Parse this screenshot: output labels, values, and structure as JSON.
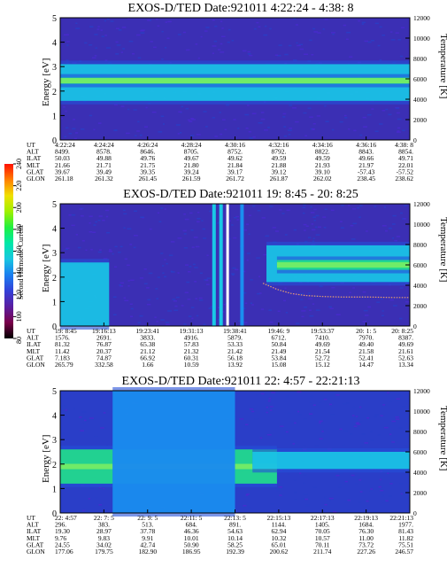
{
  "colorbar": {
    "label": "Second Harmonic Current",
    "ticks": [
      "80",
      "100",
      "120",
      "140",
      "160",
      "180",
      "200",
      "220",
      "240"
    ],
    "colors": [
      "#000000",
      "#7a004a",
      "#5a1ea0",
      "#3340d8",
      "#1a7ff0",
      "#18c6e0",
      "#00e8a8",
      "#20f040",
      "#a0f000",
      "#f0e000",
      "#ff8000",
      "#ff1000"
    ]
  },
  "panels": [
    {
      "title": "EXOS-D/TED   Date:921011  4:22:24 - 4:38: 8",
      "ylabel": "Energy [eV]",
      "y2label": "Temperature [K]",
      "yticks": [
        "5",
        "4",
        "3",
        "2",
        "1",
        "0"
      ],
      "y2ticks": [
        "12000",
        "10000",
        "8000",
        "6000",
        "4000",
        "2000",
        "0"
      ],
      "table": {
        "labels": [
          "UT",
          "ALT",
          "ILAT",
          "MLT",
          "GLAT",
          "GLON"
        ],
        "columns": [
          [
            "4:22:24",
            "8499.",
            "50.03",
            "21.66",
            "39.67",
            "261.18"
          ],
          [
            "4:24:24",
            "8578.",
            "49.88",
            "21.71",
            "39.49",
            "261.32"
          ],
          [
            "4:26:24",
            "8646.",
            "49.76",
            "21.75",
            "39.35",
            "261.45"
          ],
          [
            "4:28:24",
            "8705.",
            "49.67",
            "21.80",
            "39.24",
            "261.59"
          ],
          [
            "4:30:16",
            "8752.",
            "49.62",
            "21.84",
            "39.17",
            "261.72"
          ],
          [
            "4:32:16",
            "8792.",
            "49.59",
            "21.88",
            "39.12",
            "261.87"
          ],
          [
            "4:34:16",
            "8822.",
            "49.59",
            "21.93",
            "39.10",
            "262.02"
          ],
          [
            "4:36:16",
            "8843.",
            "49.66",
            "21.97",
            "-57.43",
            "238.45"
          ],
          [
            "4:38: 8",
            "8854.",
            "49.71",
            "22.01",
            "-57.52",
            "238.62"
          ]
        ]
      }
    },
    {
      "title": "EXOS-D/TED   Date:921011  19: 8:45 - 20: 8:25",
      "ylabel": "Energy [eV]",
      "y2label": "Temperature [K]",
      "yticks": [
        "5",
        "4",
        "3",
        "2",
        "1",
        "0"
      ],
      "y2ticks": [
        "12000",
        "10000",
        "8000",
        "6000",
        "4000",
        "2000",
        "0"
      ],
      "table": {
        "labels": [
          "UT",
          "ALT",
          "ILAT",
          "MLT",
          "GLAT",
          "GLON"
        ],
        "columns": [
          [
            "19: 8:45",
            "1576.",
            "81.32",
            "11.42",
            "7.183",
            "265.79"
          ],
          [
            "19:16:13",
            "2691.",
            "76.87",
            "20.37",
            "74.87",
            "332.58"
          ],
          [
            "19:23:41",
            "3833.",
            "65.38",
            "21.12",
            "66.92",
            "1.66"
          ],
          [
            "19:31:13",
            "4916.",
            "57.83",
            "21.32",
            "60.31",
            "10.59"
          ],
          [
            "19:38:41",
            "5879.",
            "53.33",
            "21.42",
            "56.18",
            "13.92"
          ],
          [
            "19:46: 9",
            "6712.",
            "50.84",
            "21.49",
            "53.84",
            "15.08"
          ],
          [
            "19:53:37",
            "7410.",
            "49.69",
            "21.54",
            "52.72",
            "15.12"
          ],
          [
            "20: 1: 5",
            "7970.",
            "49.40",
            "21.58",
            "52.41",
            "14.47"
          ],
          [
            "20: 8:25",
            "8387.",
            "49.69",
            "21.61",
            "52.63",
            "13.34"
          ]
        ]
      }
    },
    {
      "title": "EXOS-D/TED   Date:921011  22: 4:57 - 22:21:13",
      "ylabel": "Energy [eV]",
      "y2label": "Temperature [K]",
      "yticks": [
        "5",
        "4",
        "3",
        "2",
        "1",
        "0"
      ],
      "y2ticks": [
        "12000",
        "10000",
        "8000",
        "6000",
        "4000",
        "2000",
        "0"
      ],
      "table": {
        "labels": [
          "UT",
          "ALT",
          "ILAT",
          "MLT",
          "GLAT",
          "GLON"
        ],
        "columns": [
          [
            "22: 4:57",
            "296.",
            "19.30",
            "9.76",
            "24.55",
            "177.06"
          ],
          [
            "22: 7: 5",
            "383.",
            "28.97",
            "9.83",
            "34.02",
            "179.75"
          ],
          [
            "22: 9: 5",
            "513.",
            "37.78",
            "9.91",
            "42.74",
            "182.90"
          ],
          [
            "22:11: 5",
            "684.",
            "46.36",
            "10.01",
            "50.90",
            "186.95"
          ],
          [
            "22:13: 5",
            "891.",
            "54.63",
            "10.14",
            "58.25",
            "192.39"
          ],
          [
            "22:15:13",
            "1144.",
            "62.94",
            "10.32",
            "65.01",
            "200.62"
          ],
          [
            "22:17:13",
            "1405.",
            "70.05",
            "10.57",
            "70.11",
            "211.74"
          ],
          [
            "22:19:13",
            "1684.",
            "76.30",
            "11.00",
            "73.72",
            "227.26"
          ],
          [
            "22:21:13",
            "1977.",
            "81.43",
            "11.82",
            "75.51",
            "246.57"
          ]
        ]
      }
    }
  ],
  "chart_data": [
    {
      "type": "heatmap",
      "title": "EXOS-D/TED   Date:921011  4:22:24 - 4:38: 8",
      "xlabel": "UT",
      "ylabel": "Energy [eV]",
      "y2label": "Temperature [K]",
      "x": [
        "4:22:24",
        "4:24:24",
        "4:26:24",
        "4:28:24",
        "4:30:16",
        "4:32:16",
        "4:34:16",
        "4:36:16",
        "4:38: 8"
      ],
      "ylim": [
        0,
        5
      ],
      "y2lim": [
        0,
        12000
      ],
      "features": [
        {
          "kind": "band",
          "ylo": 1.6,
          "yhi": 3.1,
          "level": "high",
          "x0": 0,
          "x1": 1
        },
        {
          "kind": "band",
          "ylo": 2.3,
          "yhi": 2.55,
          "level": "peak",
          "x0": 0,
          "x1": 1
        }
      ]
    },
    {
      "type": "heatmap",
      "title": "EXOS-D/TED   Date:921011  19: 8:45 - 20: 8:25",
      "xlabel": "UT",
      "ylabel": "Energy [eV]",
      "y2label": "Temperature [K]",
      "x": [
        "19: 8:45",
        "19:16:13",
        "19:23:41",
        "19:31:13",
        "19:38:41",
        "19:46: 9",
        "19:53:37",
        "20: 1: 5",
        "20: 8:25"
      ],
      "ylim": [
        0,
        5
      ],
      "y2lim": [
        0,
        12000
      ],
      "features": [
        {
          "kind": "blob",
          "x0": 0.0,
          "x1": 0.14,
          "ylo": 0.0,
          "yhi": 2.6,
          "level": "high"
        },
        {
          "kind": "vline",
          "x": 0.44,
          "level": "high"
        },
        {
          "kind": "vline",
          "x": 0.46,
          "level": "high"
        },
        {
          "kind": "vline",
          "x": 0.52,
          "level": "mid"
        },
        {
          "kind": "band",
          "x0": 0.59,
          "x1": 1.0,
          "ylo": 1.8,
          "yhi": 3.3,
          "level": "high"
        },
        {
          "kind": "band",
          "x0": 0.62,
          "x1": 1.0,
          "ylo": 2.3,
          "yhi": 2.7,
          "level": "peak"
        }
      ],
      "temperature_curve": {
        "x": [
          0.58,
          0.62,
          0.66,
          0.7,
          0.75,
          0.8,
          0.88,
          0.95,
          1.0
        ],
        "y": [
          4200,
          3600,
          3200,
          3000,
          2900,
          2850,
          2850,
          2800,
          2800
        ]
      }
    },
    {
      "type": "heatmap",
      "title": "EXOS-D/TED   Date:921011  22: 4:57 - 22:21:13",
      "xlabel": "UT",
      "ylabel": "Energy [eV]",
      "y2label": "Temperature [K]",
      "x": [
        "22: 4:57",
        "22: 7: 5",
        "22: 9: 5",
        "22:11: 5",
        "22:13: 5",
        "22:15:13",
        "22:17:13",
        "22:19:13",
        "22:21:13"
      ],
      "ylim": [
        0,
        5
      ],
      "y2lim": [
        0,
        12000
      ],
      "features": [
        {
          "kind": "band",
          "x0": 0.0,
          "x1": 0.62,
          "ylo": 1.2,
          "yhi": 2.6,
          "level": "peak"
        },
        {
          "kind": "blob",
          "x0": 0.15,
          "x1": 0.5,
          "ylo": 0.0,
          "yhi": 5.0,
          "level": "mid"
        },
        {
          "kind": "band",
          "x0": 0.55,
          "x1": 1.0,
          "ylo": 1.8,
          "yhi": 2.5,
          "level": "high"
        }
      ]
    }
  ]
}
